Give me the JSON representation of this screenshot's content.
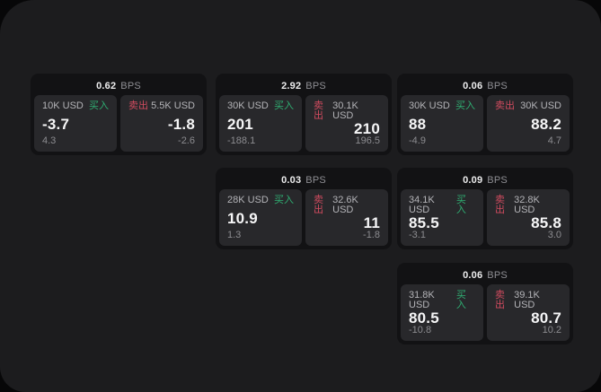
{
  "colors": {
    "buy": "#2fae72",
    "sell": "#d14b5f",
    "panel_bg": "#1c1c1e",
    "card_bg": "#121214",
    "tile_bg": "#28282b"
  },
  "cards": [
    {
      "bps_value": "0.62",
      "bps_unit": "BPS",
      "buy": {
        "amount": "10K USD",
        "side_label": "买入",
        "price": "-3.7",
        "delta": "4.3"
      },
      "sell": {
        "side_label": "卖出",
        "amount": "5.5K USD",
        "price": "-1.8",
        "delta": "-2.6"
      }
    },
    {
      "bps_value": "2.92",
      "bps_unit": "BPS",
      "buy": {
        "amount": "30K USD",
        "side_label": "买入",
        "price": "201",
        "delta": "-188.1"
      },
      "sell": {
        "side_label": "卖出",
        "amount": "30.1K USD",
        "price": "210",
        "delta": "196.5"
      }
    },
    {
      "bps_value": "0.06",
      "bps_unit": "BPS",
      "buy": {
        "amount": "30K USD",
        "side_label": "买入",
        "price": "88",
        "delta": "-4.9"
      },
      "sell": {
        "side_label": "卖出",
        "amount": "30K USD",
        "price": "88.2",
        "delta": "4.7"
      }
    },
    {
      "bps_value": "0.03",
      "bps_unit": "BPS",
      "buy": {
        "amount": "28K USD",
        "side_label": "买入",
        "price": "10.9",
        "delta": "1.3"
      },
      "sell": {
        "side_label": "卖出",
        "amount": "32.6K USD",
        "price": "11",
        "delta": "-1.8"
      }
    },
    {
      "bps_value": "0.09",
      "bps_unit": "BPS",
      "buy": {
        "amount": "34.1K USD",
        "side_label": "买入",
        "price": "85.5",
        "delta": "-3.1"
      },
      "sell": {
        "side_label": "卖出",
        "amount": "32.8K USD",
        "price": "85.8",
        "delta": "3.0"
      }
    },
    {
      "bps_value": "0.06",
      "bps_unit": "BPS",
      "buy": {
        "amount": "31.8K USD",
        "side_label": "买入",
        "price": "80.5",
        "delta": "-10.8"
      },
      "sell": {
        "side_label": "卖出",
        "amount": "39.1K USD",
        "price": "80.7",
        "delta": "10.2"
      }
    }
  ]
}
